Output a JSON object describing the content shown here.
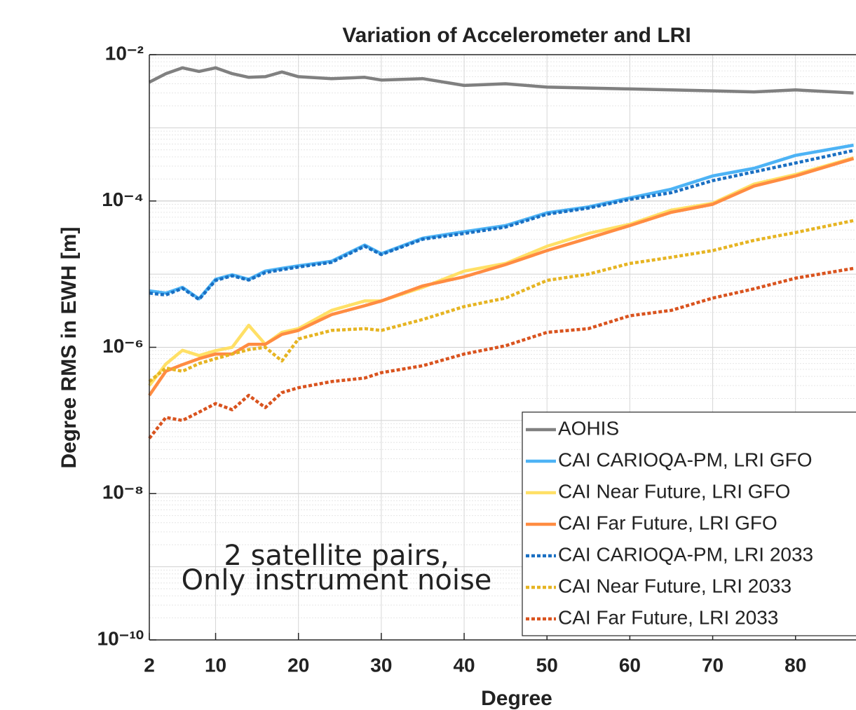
{
  "chart_data": {
    "type": "line",
    "title": "Variation of Accelerometer and LRI",
    "xlabel": "Degree",
    "ylabel": "Degree RMS in EWH [m]",
    "annotations": [
      "2 satellite pairs,",
      "Only instrument noise"
    ],
    "log_y": true,
    "grid": true,
    "legend": "southeast",
    "xlim": [
      2,
      87.3
    ],
    "xticks": [
      2,
      10,
      20,
      30,
      40,
      50,
      60,
      70,
      80
    ],
    "ylim": [
      1e-10,
      0.01
    ],
    "yticks": [
      {
        "value": 1e-10,
        "label": "10⁻¹⁰"
      },
      {
        "value": 1e-08,
        "label": "10⁻⁸"
      },
      {
        "value": 1e-06,
        "label": "10⁻⁶"
      },
      {
        "value": 0.0001,
        "label": "10⁻⁴"
      },
      {
        "value": 0.01,
        "label": "10⁻²"
      }
    ],
    "x": [
      2,
      4,
      6,
      8,
      10,
      12,
      14,
      16,
      18,
      20,
      24,
      28,
      30,
      35,
      40,
      45,
      50,
      55,
      60,
      65,
      70,
      75,
      80,
      87
    ],
    "series": [
      {
        "name": "AOHIS",
        "color": "#808080",
        "dashed": false,
        "values": [
          0.0042,
          0.0055,
          0.0066,
          0.0059,
          0.0066,
          0.0055,
          0.0049,
          0.005,
          0.0058,
          0.005,
          0.0047,
          0.0049,
          0.0045,
          0.0047,
          0.0038,
          0.004,
          0.0036,
          0.0035,
          0.0034,
          0.0033,
          0.0032,
          0.0031,
          0.0033,
          0.003
        ]
      },
      {
        "name": "CAI CARIOQA-PM, LRI GFO",
        "color": "#4db3f5",
        "dashed": false,
        "values": [
          5.9e-06,
          5.5e-06,
          6.6e-06,
          4.6e-06,
          8.5e-06,
          9.8e-06,
          8.5e-06,
          1.1e-05,
          1.2e-05,
          1.3e-05,
          1.5e-05,
          2.5e-05,
          1.9e-05,
          3.1e-05,
          3.8e-05,
          4.6e-05,
          6.9e-05,
          8.3e-05,
          0.00011,
          0.000145,
          0.00022,
          0.00028,
          0.00042,
          0.00058
        ]
      },
      {
        "name": "CAI Near Future, LRI GFO",
        "color": "#ffe066",
        "dashed": false,
        "values": [
          3e-07,
          5.9e-07,
          9.1e-07,
          7.7e-07,
          9e-07,
          1e-06,
          2e-06,
          1.1e-06,
          1.6e-06,
          1.8e-06,
          3.2e-06,
          4.3e-06,
          4.3e-06,
          6.6e-06,
          1.1e-05,
          1.4e-05,
          2.4e-05,
          3.6e-05,
          4.8e-05,
          7.5e-05,
          9.3e-05,
          0.00017,
          0.00023,
          0.00039
        ]
      },
      {
        "name": "CAI Far Future, LRI GFO",
        "color": "#ff8c42",
        "dashed": false,
        "values": [
          2.2e-07,
          4.7e-07,
          5.8e-07,
          7e-07,
          8.1e-07,
          8.1e-07,
          1.1e-06,
          1.1e-06,
          1.5e-06,
          1.7e-06,
          2.8e-06,
          3.7e-06,
          4.3e-06,
          6.9e-06,
          9.2e-06,
          1.35e-05,
          2.1e-05,
          3.1e-05,
          4.6e-05,
          7e-05,
          9e-05,
          0.00016,
          0.00022,
          0.00038
        ]
      },
      {
        "name": "CAI CARIOQA-PM, LRI 2033",
        "color": "#1a6fc2",
        "dashed": true,
        "values": [
          5.5e-06,
          5.2e-06,
          6.4e-06,
          4.5e-06,
          8.2e-06,
          9.5e-06,
          8.3e-06,
          1.05e-05,
          1.15e-05,
          1.25e-05,
          1.45e-05,
          2.4e-05,
          1.85e-05,
          3e-05,
          3.6e-05,
          4.4e-05,
          6.6e-05,
          8e-05,
          0.000105,
          0.00013,
          0.00019,
          0.00025,
          0.00033,
          0.00049
        ]
      },
      {
        "name": "CAI Near Future, LRI 2033",
        "color": "#e6b422",
        "dashed": true,
        "values": [
          3.4e-07,
          5.2e-07,
          4.7e-07,
          6e-07,
          7e-07,
          8.1e-07,
          9.3e-07,
          1e-06,
          6.5e-07,
          1.3e-06,
          1.7e-06,
          1.8e-06,
          1.7e-06,
          2.4e-06,
          3.6e-06,
          4.7e-06,
          8.2e-06,
          1e-05,
          1.4e-05,
          1.7e-05,
          2.1e-05,
          2.9e-05,
          3.7e-05,
          5.4e-05
        ]
      },
      {
        "name": "CAI Far Future, LRI 2033",
        "color": "#d9531e",
        "dashed": true,
        "values": [
          5.7e-08,
          1.1e-07,
          1e-07,
          1.3e-07,
          1.7e-07,
          1.4e-07,
          2.2e-07,
          1.5e-07,
          2.4e-07,
          2.8e-07,
          3.4e-07,
          3.8e-07,
          4.5e-07,
          5.6e-07,
          8.1e-07,
          1.05e-06,
          1.6e-06,
          1.8e-06,
          2.7e-06,
          3.2e-06,
          4.7e-06,
          6.3e-06,
          8.8e-06,
          1.2e-05
        ]
      }
    ]
  }
}
